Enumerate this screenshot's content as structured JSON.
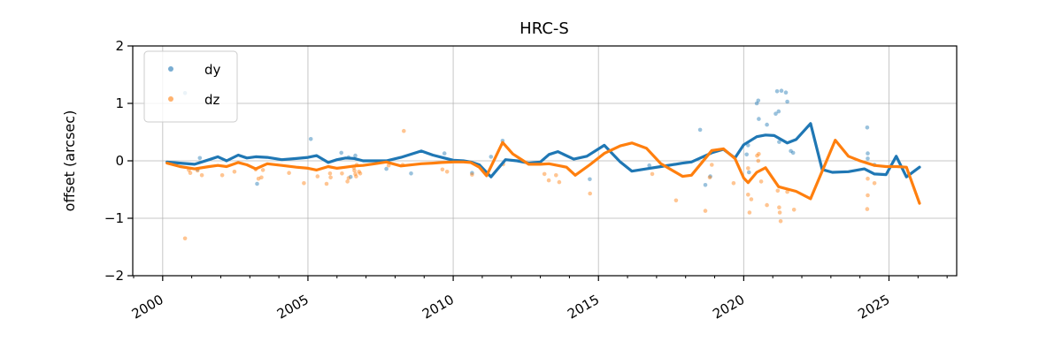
{
  "figure": {
    "title": "HRC-S"
  },
  "chart_data": {
    "type": "scatter",
    "title": "HRC-S",
    "xlabel": "",
    "ylabel": "offset (arcsec)",
    "xlim": [
      1998.97,
      2027.33
    ],
    "ylim": [
      -2,
      2
    ],
    "grid": true,
    "x_major_ticks": [
      2000,
      2005,
      2010,
      2015,
      2020,
      2025
    ],
    "x_tick_labels": [
      "2000",
      "2005",
      "2010",
      "2015",
      "2020",
      "2025"
    ],
    "x_minor_tick_step": 1,
    "x_tick_rotation_deg": 30,
    "y_ticks": [
      2,
      1,
      0,
      -1,
      -2
    ],
    "y_tick_labels": [
      "2",
      "1",
      "0",
      "−1",
      "−2"
    ],
    "grid_color": "#b0b0b0",
    "legend": {
      "position": "upper left",
      "entries": [
        {
          "label": "dy",
          "color": "#1f77b4"
        },
        {
          "label": "dz",
          "color": "#ff7f0e"
        }
      ]
    },
    "series": [
      {
        "name": "dy",
        "type": "line",
        "color": "#1f77b4",
        "linewidth": 3.2,
        "x": [
          2000.15,
          2000.6,
          2001.1,
          2001.6,
          2001.9,
          2002.2,
          2002.6,
          2002.9,
          2003.2,
          2003.6,
          2004.1,
          2004.6,
          2005.0,
          2005.3,
          2005.7,
          2006.0,
          2006.3,
          2006.6,
          2006.9,
          2007.3,
          2007.7,
          2008.2,
          2008.9,
          2009.3,
          2009.6,
          2010.0,
          2010.35,
          2010.6,
          2010.9,
          2011.3,
          2011.8,
          2012.2,
          2012.6,
          2013.0,
          2013.3,
          2013.6,
          2014.15,
          2014.6,
          2015.2,
          2015.75,
          2016.15,
          2016.65,
          2017.15,
          2017.9,
          2018.2,
          2018.9,
          2019.3,
          2019.7,
          2020.0,
          2020.45,
          2020.75,
          2021.05,
          2021.5,
          2021.8,
          2022.3,
          2022.7,
          2023.05,
          2023.6,
          2024.15,
          2024.5,
          2024.9,
          2025.25,
          2025.6,
          2026.05
        ],
        "y": [
          -0.02,
          -0.04,
          -0.06,
          0.02,
          0.07,
          0.0,
          0.1,
          0.05,
          0.07,
          0.06,
          0.02,
          0.04,
          0.06,
          0.09,
          -0.03,
          0.02,
          0.05,
          0.04,
          0.0,
          0.0,
          0.0,
          0.06,
          0.17,
          0.1,
          0.06,
          0.01,
          0.0,
          -0.02,
          -0.07,
          -0.28,
          0.02,
          0.0,
          -0.04,
          -0.02,
          0.11,
          0.16,
          0.03,
          0.08,
          0.27,
          -0.02,
          -0.18,
          -0.14,
          -0.1,
          -0.04,
          -0.02,
          0.14,
          0.2,
          0.05,
          0.28,
          0.42,
          0.45,
          0.44,
          0.31,
          0.37,
          0.65,
          -0.15,
          -0.2,
          -0.19,
          -0.14,
          -0.23,
          -0.24,
          0.08,
          -0.28,
          -0.11
        ]
      },
      {
        "name": "dz",
        "type": "line",
        "color": "#ff7f0e",
        "linewidth": 3.2,
        "x": [
          2000.15,
          2000.6,
          2001.1,
          2001.6,
          2001.9,
          2002.2,
          2002.6,
          2002.9,
          2003.2,
          2003.6,
          2004.1,
          2004.6,
          2005.0,
          2005.3,
          2005.7,
          2006.0,
          2006.3,
          2006.6,
          2006.9,
          2007.3,
          2007.7,
          2008.2,
          2008.9,
          2009.3,
          2009.6,
          2010.0,
          2010.35,
          2010.6,
          2010.9,
          2011.15,
          2011.7,
          2012.05,
          2012.6,
          2013.0,
          2013.3,
          2013.9,
          2014.2,
          2014.7,
          2015.2,
          2015.75,
          2016.15,
          2016.65,
          2017.15,
          2017.9,
          2018.2,
          2018.9,
          2019.3,
          2019.7,
          2020.0,
          2020.15,
          2020.45,
          2020.75,
          2021.2,
          2021.5,
          2021.8,
          2022.3,
          2023.15,
          2023.6,
          2024.0,
          2024.5,
          2024.9,
          2025.25,
          2025.6,
          2026.05
        ],
        "y": [
          -0.04,
          -0.1,
          -0.14,
          -0.1,
          -0.08,
          -0.1,
          -0.03,
          -0.07,
          -0.14,
          -0.05,
          -0.08,
          -0.11,
          -0.13,
          -0.16,
          -0.1,
          -0.13,
          -0.11,
          -0.09,
          -0.08,
          -0.05,
          -0.02,
          -0.09,
          -0.05,
          -0.04,
          -0.03,
          -0.02,
          -0.02,
          -0.03,
          -0.11,
          -0.26,
          0.32,
          0.12,
          -0.06,
          -0.06,
          -0.05,
          -0.11,
          -0.25,
          -0.07,
          0.13,
          0.26,
          0.31,
          0.22,
          -0.05,
          -0.27,
          -0.25,
          0.18,
          0.21,
          0.04,
          -0.3,
          -0.38,
          -0.2,
          -0.12,
          -0.45,
          -0.49,
          -0.53,
          -0.66,
          0.36,
          0.08,
          0.0,
          -0.08,
          -0.1,
          -0.1,
          -0.11,
          -0.74
        ]
      },
      {
        "name": "dy",
        "type": "scatter",
        "color": "#1f77b4",
        "alpha": 0.45,
        "markersize": 2.3,
        "x": [
          2000.77,
          2001.2,
          2001.28,
          2003.25,
          2005.1,
          2006.15,
          2006.4,
          2006.47,
          2006.63,
          2007.7,
          2008.55,
          2009.7,
          2010.65,
          2011.3,
          2011.7,
          2014.7,
          2016.75,
          2018.5,
          2018.68,
          2018.85,
          2020.1,
          2020.15,
          2020.18,
          2020.45,
          2020.5,
          2020.52,
          2020.8,
          2021.1,
          2021.15,
          2021.2,
          2021.22,
          2021.3,
          2021.45,
          2021.5,
          2021.62,
          2021.7,
          2024.25,
          2024.27,
          2024.27,
          2024.5
        ],
        "y": [
          1.18,
          -0.15,
          0.05,
          -0.4,
          0.38,
          0.14,
          0.06,
          -0.28,
          0.09,
          -0.14,
          -0.22,
          0.13,
          -0.21,
          0.07,
          0.35,
          -0.32,
          -0.08,
          0.54,
          -0.42,
          -0.27,
          0.11,
          0.27,
          -0.2,
          1.0,
          1.05,
          0.73,
          0.63,
          0.82,
          1.21,
          0.86,
          0.33,
          1.22,
          1.19,
          1.03,
          0.17,
          0.14,
          0.58,
          0.13,
          0.04,
          -0.07
        ]
      },
      {
        "name": "dz",
        "type": "scatter",
        "color": "#ff7f0e",
        "alpha": 0.45,
        "markersize": 2.3,
        "x": [
          2000.77,
          2000.9,
          2000.95,
          2001.2,
          2001.35,
          2002.05,
          2002.47,
          2003.2,
          2003.3,
          2003.4,
          2003.45,
          2004.35,
          2004.86,
          2005.33,
          2005.64,
          2005.76,
          2005.78,
          2006.17,
          2006.36,
          2006.4,
          2006.58,
          2006.6,
          2006.63,
          2006.66,
          2006.68,
          2006.76,
          2006.8,
          2007.78,
          2008.26,
          2008.3,
          2009.63,
          2009.79,
          2010.65,
          2011.72,
          2013.14,
          2013.29,
          2013.54,
          2013.65,
          2014.71,
          2016.85,
          2017.67,
          2018.68,
          2018.83,
          2018.9,
          2019.65,
          2020.15,
          2020.15,
          2020.2,
          2020.26,
          2020.46,
          2020.5,
          2020.52,
          2020.6,
          2020.8,
          2021.17,
          2021.22,
          2021.24,
          2021.27,
          2021.5,
          2021.73,
          2024.25,
          2024.27,
          2024.27,
          2024.5
        ],
        "y": [
          -1.35,
          -0.16,
          -0.21,
          -0.17,
          -0.25,
          -0.25,
          -0.19,
          -0.15,
          -0.31,
          -0.29,
          -0.16,
          -0.21,
          -0.39,
          -0.27,
          -0.4,
          -0.22,
          -0.29,
          -0.22,
          -0.36,
          -0.3,
          -0.12,
          -0.17,
          -0.23,
          -0.27,
          -0.07,
          -0.19,
          -0.22,
          -0.08,
          -0.07,
          0.52,
          -0.15,
          -0.19,
          -0.24,
          -0.06,
          -0.23,
          -0.34,
          -0.25,
          -0.37,
          -0.57,
          -0.23,
          -0.69,
          -0.87,
          -0.29,
          -0.07,
          -0.39,
          -0.13,
          -0.59,
          -0.9,
          -0.67,
          0.09,
          0.0,
          0.12,
          -0.36,
          -0.77,
          -0.52,
          -0.81,
          -0.9,
          -1.05,
          -0.54,
          -0.85,
          -0.84,
          -0.31,
          -0.6,
          -0.39
        ]
      }
    ]
  }
}
